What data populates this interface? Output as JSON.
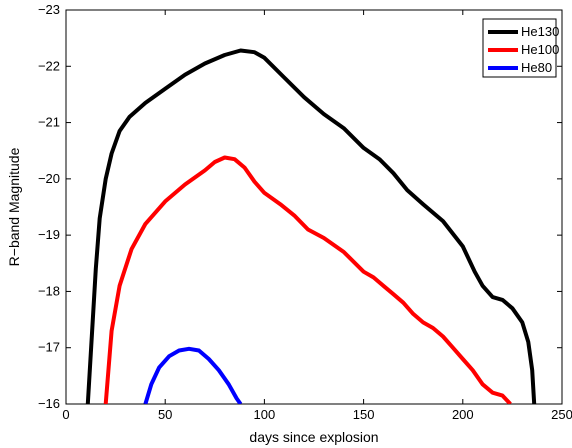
{
  "chart_data": {
    "type": "line",
    "title": "",
    "xlabel": "days since explosion",
    "ylabel": "R−band Magnitude",
    "xlim": [
      0,
      250
    ],
    "ylim": [
      -16,
      -23
    ],
    "y_inverted": true,
    "grid": false,
    "legend_position": "top-right",
    "x_ticks": [
      0,
      50,
      100,
      150,
      200,
      250
    ],
    "x_tick_labels": [
      "0",
      "50",
      "100",
      "150",
      "200",
      "250"
    ],
    "y_ticks": [
      -23,
      -22,
      -21,
      -20,
      -19,
      -18,
      -17,
      -16
    ],
    "y_tick_labels": [
      "−23",
      "−22",
      "−21",
      "−20",
      "−19",
      "−18",
      "−17",
      "−16"
    ],
    "series": [
      {
        "name": "He130",
        "color": "#000000",
        "points": [
          [
            11,
            -16.0
          ],
          [
            13,
            -17.2
          ],
          [
            15,
            -18.4
          ],
          [
            17,
            -19.3
          ],
          [
            20,
            -20.0
          ],
          [
            23,
            -20.45
          ],
          [
            27,
            -20.85
          ],
          [
            32,
            -21.1
          ],
          [
            40,
            -21.35
          ],
          [
            50,
            -21.6
          ],
          [
            60,
            -21.85
          ],
          [
            70,
            -22.05
          ],
          [
            80,
            -22.2
          ],
          [
            88,
            -22.28
          ],
          [
            95,
            -22.25
          ],
          [
            100,
            -22.15
          ],
          [
            110,
            -21.8
          ],
          [
            120,
            -21.45
          ],
          [
            130,
            -21.15
          ],
          [
            140,
            -20.9
          ],
          [
            150,
            -20.55
          ],
          [
            158,
            -20.35
          ],
          [
            165,
            -20.1
          ],
          [
            172,
            -19.8
          ],
          [
            180,
            -19.55
          ],
          [
            190,
            -19.25
          ],
          [
            200,
            -18.8
          ],
          [
            206,
            -18.35
          ],
          [
            210,
            -18.1
          ],
          [
            215,
            -17.9
          ],
          [
            220,
            -17.85
          ],
          [
            225,
            -17.7
          ],
          [
            230,
            -17.45
          ],
          [
            233,
            -17.1
          ],
          [
            235,
            -16.6
          ],
          [
            236,
            -16.0
          ]
        ]
      },
      {
        "name": "He100",
        "color": "#ff0000",
        "points": [
          [
            20,
            -16.0
          ],
          [
            23,
            -17.3
          ],
          [
            27,
            -18.1
          ],
          [
            33,
            -18.75
          ],
          [
            40,
            -19.2
          ],
          [
            50,
            -19.6
          ],
          [
            60,
            -19.9
          ],
          [
            70,
            -20.15
          ],
          [
            75,
            -20.3
          ],
          [
            80,
            -20.38
          ],
          [
            85,
            -20.35
          ],
          [
            90,
            -20.2
          ],
          [
            95,
            -19.95
          ],
          [
            100,
            -19.75
          ],
          [
            108,
            -19.55
          ],
          [
            115,
            -19.35
          ],
          [
            122,
            -19.1
          ],
          [
            130,
            -18.95
          ],
          [
            140,
            -18.7
          ],
          [
            150,
            -18.35
          ],
          [
            155,
            -18.25
          ],
          [
            160,
            -18.1
          ],
          [
            165,
            -17.95
          ],
          [
            170,
            -17.8
          ],
          [
            175,
            -17.6
          ],
          [
            180,
            -17.45
          ],
          [
            185,
            -17.35
          ],
          [
            190,
            -17.2
          ],
          [
            195,
            -17.0
          ],
          [
            200,
            -16.8
          ],
          [
            205,
            -16.6
          ],
          [
            210,
            -16.35
          ],
          [
            215,
            -16.2
          ],
          [
            220,
            -16.15
          ],
          [
            224,
            -16.0
          ]
        ]
      },
      {
        "name": "He80",
        "color": "#0000ff",
        "points": [
          [
            40,
            -16.0
          ],
          [
            43,
            -16.35
          ],
          [
            47,
            -16.65
          ],
          [
            52,
            -16.85
          ],
          [
            57,
            -16.95
          ],
          [
            62,
            -16.98
          ],
          [
            67,
            -16.95
          ],
          [
            72,
            -16.8
          ],
          [
            77,
            -16.6
          ],
          [
            82,
            -16.35
          ],
          [
            86,
            -16.1
          ],
          [
            88,
            -16.0
          ]
        ]
      }
    ]
  }
}
